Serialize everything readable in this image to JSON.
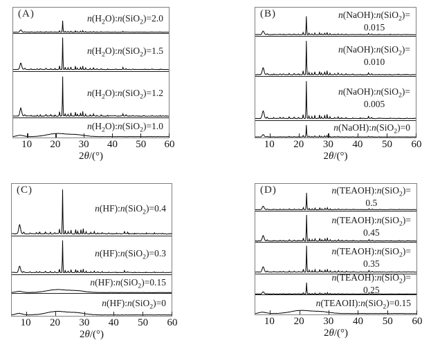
{
  "figure_title": "",
  "chart_data": {
    "type": "line",
    "description": "Four stacked XRD pattern panels (intensity vs 2-theta), each containing several offset diffraction traces with composition-ratio labels",
    "shared": {
      "xlabel": "2θ/(°)",
      "xlim": [
        5,
        60
      ],
      "xticks": [
        10,
        20,
        30,
        40,
        50,
        60
      ],
      "ylabel": "",
      "grid": false,
      "trace_color": "#000000"
    },
    "peak_sets": {
      "crystalline": [
        [
          7.7,
          0.2,
          0.45
        ],
        [
          9.1,
          0.035,
          0.25
        ],
        [
          11.3,
          0.02,
          0.2
        ],
        [
          13.5,
          0.025,
          0.18
        ],
        [
          14.6,
          0.03,
          0.18
        ],
        [
          16.6,
          0.04,
          0.18
        ],
        [
          18.3,
          0.03,
          0.18
        ],
        [
          19.8,
          0.025,
          0.18
        ],
        [
          21.4,
          0.11,
          0.14
        ],
        [
          22.5,
          1.0,
          0.12
        ],
        [
          23.4,
          0.07,
          0.13
        ],
        [
          24.4,
          0.05,
          0.13
        ],
        [
          25.4,
          0.085,
          0.13
        ],
        [
          27.0,
          0.1,
          0.13
        ],
        [
          27.7,
          0.05,
          0.13
        ],
        [
          28.8,
          0.085,
          0.13
        ],
        [
          29.6,
          0.115,
          0.12
        ],
        [
          30.6,
          0.05,
          0.13
        ],
        [
          32.2,
          0.03,
          0.14
        ],
        [
          33.4,
          0.05,
          0.14
        ],
        [
          34.6,
          0.025,
          0.14
        ],
        [
          36.1,
          0.03,
          0.14
        ],
        [
          38.4,
          0.02,
          0.15
        ],
        [
          41.0,
          0.015,
          0.15
        ],
        [
          43.8,
          0.06,
          0.14
        ],
        [
          44.9,
          0.03,
          0.15
        ],
        [
          47.4,
          0.015,
          0.15
        ],
        [
          51.3,
          0.012,
          0.15
        ],
        [
          54.1,
          0.015,
          0.15
        ],
        [
          57.0,
          0.01,
          0.15
        ]
      ],
      "amorphous": [
        [
          7.5,
          0.22,
          1.6
        ],
        [
          20.5,
          0.5,
          4.8
        ],
        [
          27.5,
          0.28,
          4.0
        ]
      ]
    },
    "panels": [
      {
        "id": "A",
        "panel_label": "(A)",
        "xlabel": "2θ/(°)",
        "traces": [
          {
            "label": [
              "n(H₂O):n(SiO₂)=2.0"
            ],
            "peaks": "crystalline",
            "scale": 0.5,
            "row_weight": 20,
            "seed": 1
          },
          {
            "label": [
              "n(H₂O):n(SiO₂)=1.5"
            ],
            "peaks": "crystalline",
            "scale": 0.95,
            "row_weight": 29,
            "seed": 2
          },
          {
            "label": [
              "n(H₂O):n(SiO₂)=1.2"
            ],
            "peaks": "crystalline",
            "scale": 0.95,
            "row_weight": 36,
            "seed": 3
          },
          {
            "label": [
              "n(H₂O):n(SiO₂)=1.0"
            ],
            "peaks": "amorphous",
            "scale": 0.35,
            "row_weight": 15,
            "seed": 4
          }
        ]
      },
      {
        "id": "B",
        "panel_label": "(B)",
        "xlabel": "2θ/(°)",
        "traces": [
          {
            "label": [
              "n(NaOH):n(SiO₂)=",
              "0.015"
            ],
            "peaks": "crystalline",
            "scale": 0.72,
            "row_weight": 22,
            "seed": 5
          },
          {
            "label": [
              "n(NaOH):n(SiO₂)=",
              "0.010"
            ],
            "peaks": "crystalline",
            "scale": 0.95,
            "row_weight": 31,
            "seed": 6
          },
          {
            "label": [
              "n(NaOH):n(SiO₂)=",
              "0.005"
            ],
            "peaks": "crystalline",
            "scale": 0.95,
            "row_weight": 34,
            "seed": 7
          },
          {
            "label": [
              "n(NaOH):n(SiO₂)=0"
            ],
            "peaks": "crystalline",
            "scale": 0.8,
            "row_weight": 13,
            "seed": 8
          }
        ]
      },
      {
        "id": "C",
        "panel_label": "(C)",
        "xlabel": "2θ/(°)",
        "traces": [
          {
            "label": [
              "n(HF):n(SiO₂)=0.4"
            ],
            "peaks": "crystalline",
            "scale": 0.95,
            "row_weight": 40,
            "seed": 9
          },
          {
            "label": [
              "n(HF):n(SiO₂)=0.3"
            ],
            "peaks": "crystalline",
            "scale": 0.95,
            "row_weight": 29,
            "seed": 10
          },
          {
            "label": [
              "n(HF):n(SiO₂)=0.15"
            ],
            "peaks": "amorphous",
            "scale": 0.35,
            "row_weight": 14,
            "seed": 11
          },
          {
            "label": [
              "n(HF):n(SiO₂)=0"
            ],
            "peaks": "amorphous",
            "scale": 0.35,
            "row_weight": 17,
            "seed": 12
          }
        ]
      },
      {
        "id": "D",
        "panel_label": "(D)",
        "xlabel": "2θ/(°)",
        "traces": [
          {
            "label": [
              "n(TEAOH):n(SiO₂)=",
              "0.5"
            ],
            "peaks": "crystalline",
            "scale": 0.7,
            "row_weight": 21,
            "seed": 13
          },
          {
            "label": [
              "n(TEAOH):n(SiO₂)=",
              "0.45"
            ],
            "peaks": "crystalline",
            "scale": 0.95,
            "row_weight": 24,
            "seed": 14
          },
          {
            "label": [
              "n(TEAOH):n(SiO₂)=",
              "0.35"
            ],
            "peaks": "crystalline",
            "scale": 0.95,
            "row_weight": 24,
            "seed": 15
          },
          {
            "label": [
              "n(TEAOH):n(SiO₂)=",
              "0.25"
            ],
            "peaks": "crystalline",
            "scale": 0.62,
            "row_weight": 16,
            "seed": 16
          },
          {
            "label": [
              "n(TEAOII):n(SiO₂)=0.15"
            ],
            "peaks": "amorphous",
            "scale": 0.35,
            "row_weight": 15,
            "seed": 17
          }
        ]
      }
    ]
  }
}
